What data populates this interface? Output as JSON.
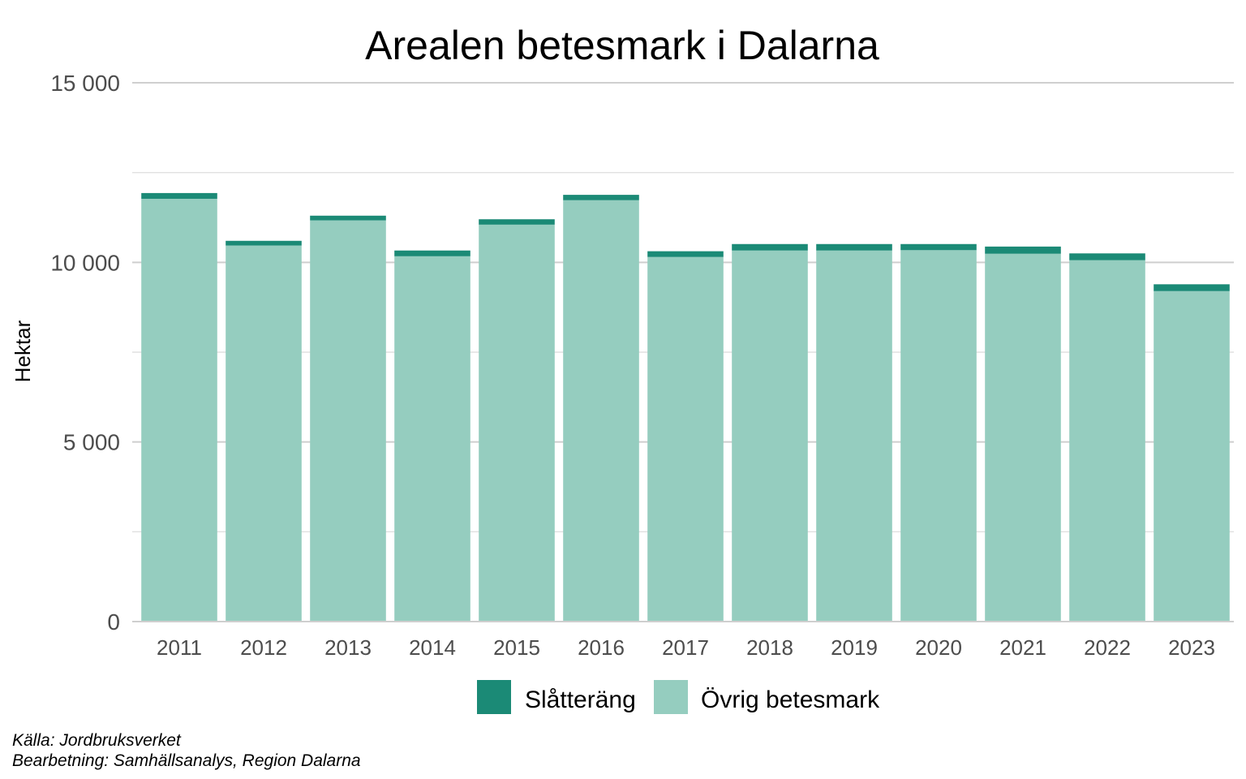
{
  "chart_data": {
    "type": "bar",
    "stacked": true,
    "title": "Arealen betesmark i Dalarna",
    "ylabel": "Hektar",
    "xlabel": "",
    "ylim": [
      0,
      15000
    ],
    "yticks": [
      0,
      5000,
      10000,
      15000
    ],
    "ytick_labels": [
      "0",
      "5 000",
      "10 000",
      "15 000"
    ],
    "grid": true,
    "legend_position": "bottom",
    "categories": [
      "2011",
      "2012",
      "2013",
      "2014",
      "2015",
      "2016",
      "2017",
      "2018",
      "2019",
      "2020",
      "2021",
      "2022",
      "2023"
    ],
    "series": [
      {
        "name": "Övrig betesmark",
        "color": "#95cdbf",
        "values": [
          11770,
          10470,
          11170,
          10170,
          11050,
          11730,
          10150,
          10330,
          10330,
          10340,
          10240,
          10060,
          9200
        ]
      },
      {
        "name": "Slåtteräng",
        "color": "#1b8a76",
        "values": [
          160,
          130,
          130,
          160,
          150,
          150,
          160,
          180,
          180,
          170,
          200,
          190,
          190
        ]
      }
    ],
    "legend_order": [
      "Slåtteräng",
      "Övrig betesmark"
    ]
  },
  "captions": {
    "source": "Källa: Jordbruksverket",
    "processing": "Bearbetning: Samhällsanalys, Region Dalarna"
  }
}
